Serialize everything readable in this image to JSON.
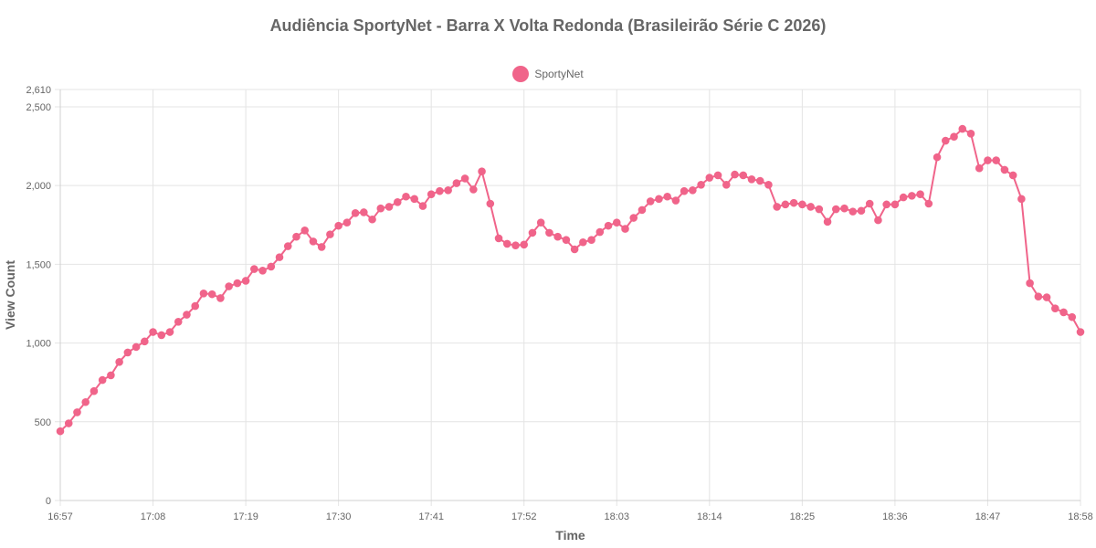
{
  "chart_data": {
    "type": "line",
    "title": "Audiência SportyNet - Barra X Volta Redonda (Brasileirão Série C 2026)",
    "xlabel": "Time",
    "ylabel": "View Count",
    "ylim": [
      0,
      2610
    ],
    "y_ticks": [
      0,
      500,
      1000,
      1500,
      2000,
      2500,
      2610
    ],
    "y_tick_labels": [
      "0",
      "500",
      "1,000",
      "1,500",
      "2,000",
      "2,500",
      "2,610"
    ],
    "x_tick_labels": [
      "16:57",
      "17:08",
      "17:19",
      "17:30",
      "17:41",
      "17:52",
      "18:03",
      "18:14",
      "18:25",
      "18:36",
      "18:47",
      "18:58"
    ],
    "x_range": [
      "16:57",
      "18:58"
    ],
    "grid": true,
    "legend_position": "top",
    "series": [
      {
        "name": "SportyNet",
        "color": "#f0648a",
        "x": [
          "16:57",
          "16:58",
          "16:59",
          "17:00",
          "17:01",
          "17:02",
          "17:03",
          "17:04",
          "17:05",
          "17:06",
          "17:07",
          "17:08",
          "17:09",
          "17:10",
          "17:11",
          "17:12",
          "17:13",
          "17:14",
          "17:15",
          "17:16",
          "17:17",
          "17:18",
          "17:19",
          "17:20",
          "17:21",
          "17:22",
          "17:23",
          "17:24",
          "17:25",
          "17:26",
          "17:27",
          "17:28",
          "17:29",
          "17:30",
          "17:31",
          "17:32",
          "17:33",
          "17:34",
          "17:35",
          "17:36",
          "17:37",
          "17:38",
          "17:39",
          "17:40",
          "17:41",
          "17:42",
          "17:43",
          "17:44",
          "17:45",
          "17:46",
          "17:47",
          "17:48",
          "17:49",
          "17:50",
          "17:51",
          "17:52",
          "17:53",
          "17:54",
          "17:55",
          "17:56",
          "17:57",
          "17:58",
          "17:59",
          "18:00",
          "18:01",
          "18:02",
          "18:03",
          "18:04",
          "18:05",
          "18:06",
          "18:07",
          "18:08",
          "18:09",
          "18:10",
          "18:11",
          "18:12",
          "18:13",
          "18:14",
          "18:15",
          "18:16",
          "18:17",
          "18:18",
          "18:19",
          "18:20",
          "18:21",
          "18:22",
          "18:23",
          "18:24",
          "18:25",
          "18:26",
          "18:27",
          "18:28",
          "18:29",
          "18:30",
          "18:31",
          "18:32",
          "18:33",
          "18:34",
          "18:35",
          "18:36",
          "18:37",
          "18:38",
          "18:39",
          "18:40",
          "18:41",
          "18:42",
          "18:43",
          "18:44",
          "18:45",
          "18:46",
          "18:47",
          "18:48",
          "18:49",
          "18:50",
          "18:51",
          "18:52",
          "18:53",
          "18:54",
          "18:55",
          "18:56",
          "18:57",
          "18:58"
        ],
        "values": [
          440,
          490,
          560,
          625,
          695,
          765,
          795,
          880,
          940,
          975,
          1010,
          1070,
          1050,
          1070,
          1135,
          1180,
          1235,
          1315,
          1310,
          1285,
          1360,
          1380,
          1395,
          1470,
          1460,
          1485,
          1545,
          1615,
          1675,
          1715,
          1645,
          1610,
          1690,
          1745,
          1765,
          1825,
          1830,
          1785,
          1855,
          1865,
          1895,
          1930,
          1915,
          1870,
          1945,
          1965,
          1970,
          2015,
          2045,
          1975,
          2090,
          1885,
          1665,
          1630,
          1620,
          1625,
          1700,
          1765,
          1700,
          1675,
          1655,
          1595,
          1640,
          1655,
          1705,
          1745,
          1765,
          1725,
          1795,
          1845,
          1900,
          1915,
          1930,
          1905,
          1965,
          1970,
          2005,
          2050,
          2065,
          2005,
          2070,
          2065,
          2040,
          2030,
          2005,
          1865,
          1880,
          1890,
          1880,
          1865,
          1850,
          1770,
          1850,
          1855,
          1835,
          1840,
          1885,
          1780,
          1880,
          1880,
          1925,
          1935,
          1945,
          1885,
          2180,
          2285,
          2310,
          2360,
          2330,
          2110,
          2160,
          2160,
          2100,
          2065,
          1915,
          1380,
          1295,
          1290,
          1220,
          1195,
          1165,
          1070
        ]
      }
    ]
  }
}
